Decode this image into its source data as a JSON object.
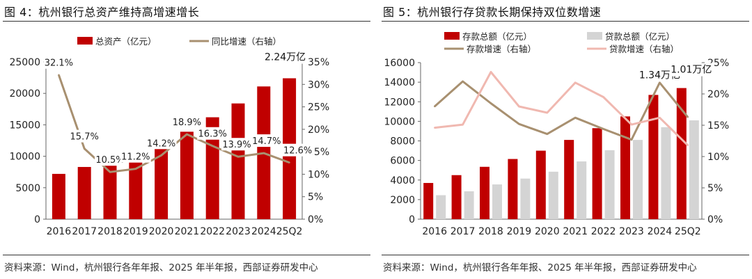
{
  "charts": [
    {
      "title": "图 4：杭州银行总资产维持高增速增长",
      "source": "资料来源：Wind，杭州银行各年年报、2025 年半年报，西部证券研发中心",
      "chart_data": {
        "type": "bar",
        "categories": [
          "2016",
          "2017",
          "2018",
          "2019",
          "2020",
          "2021",
          "2022",
          "2023",
          "2024",
          "25Q2"
        ],
        "series": [
          {
            "name": "总资产（亿元）",
            "type": "bar",
            "axis": "left",
            "color": "#c00000",
            "values": [
              7200,
              8300,
              9200,
              10200,
              11700,
              13900,
              16200,
              18400,
              21100,
              22400
            ]
          },
          {
            "name": "同比增速（右轴）",
            "type": "line",
            "axis": "right",
            "color": "#a89070",
            "values": [
              32.1,
              15.7,
              10.5,
              11.2,
              14.2,
              18.9,
              16.3,
              13.9,
              14.7,
              12.6
            ],
            "labels": [
              "32.1%",
              "15.7%",
              "10.5%",
              "11.2%",
              "14.2%",
              "18.9%",
              "16.3%",
              "13.9%",
              "14.7%",
              "12.6%"
            ]
          }
        ],
        "ylim_left": [
          0,
          25000
        ],
        "yticks_left": [
          "0",
          "5000",
          "10000",
          "15000",
          "20000",
          "25000"
        ],
        "ylim_right": [
          0,
          35
        ],
        "yticks_right": [
          "0%",
          "5%",
          "10%",
          "15%",
          "20%",
          "25%",
          "30%",
          "35%"
        ],
        "annotations": [
          {
            "category": "25Q2",
            "text": "2.24万亿"
          }
        ],
        "legend": "top"
      }
    },
    {
      "title": "图 5：杭州银行存贷款长期保持双位数增速",
      "source": "资料来源：Wind，杭州银行各年年报、2025 年半年报，西部证券研发中心",
      "chart_data": {
        "type": "bar",
        "categories": [
          "2016",
          "2017",
          "2018",
          "2019",
          "2020",
          "2021",
          "2022",
          "2023",
          "2024",
          "25Q2"
        ],
        "series": [
          {
            "name": "存款总额（亿元）",
            "type": "bar",
            "axis": "left",
            "color": "#c00000",
            "values": [
              3700,
              4500,
              5350,
              6150,
              7000,
              8100,
              9300,
              10500,
              12700,
              13400
            ]
          },
          {
            "name": "贷款总额（亿元）",
            "type": "bar",
            "axis": "left",
            "color": "#d4d4d4",
            "values": [
              2450,
              2850,
              3550,
              4150,
              4850,
              5900,
              7050,
              8100,
              9400,
              10100
            ]
          },
          {
            "name": "存款增速（右轴）",
            "type": "line",
            "axis": "right",
            "color": "#a89070",
            "values": [
              18.0,
              22.0,
              18.5,
              15.2,
              13.6,
              16.2,
              14.4,
              12.7,
              21.8,
              16.3
            ]
          },
          {
            "name": "贷款增速（右轴）",
            "type": "line",
            "axis": "right",
            "color": "#f0b8b0",
            "values": [
              14.6,
              15.1,
              23.5,
              18.0,
              17.0,
              21.8,
              19.5,
              15.1,
              16.2,
              11.8
            ]
          }
        ],
        "ylim_left": [
          0,
          16000
        ],
        "yticks_left": [
          "0",
          "2000",
          "4000",
          "6000",
          "8000",
          "10000",
          "12000",
          "14000",
          "16000"
        ],
        "ylim_right": [
          0,
          25
        ],
        "yticks_right": [
          "0%",
          "5%",
          "10%",
          "15%",
          "20%",
          "25%"
        ],
        "annotations": [
          {
            "category": "2024",
            "text": "1.34万亿"
          },
          {
            "category": "25Q2",
            "text": "1.01万亿"
          }
        ],
        "legend": "top"
      }
    }
  ]
}
